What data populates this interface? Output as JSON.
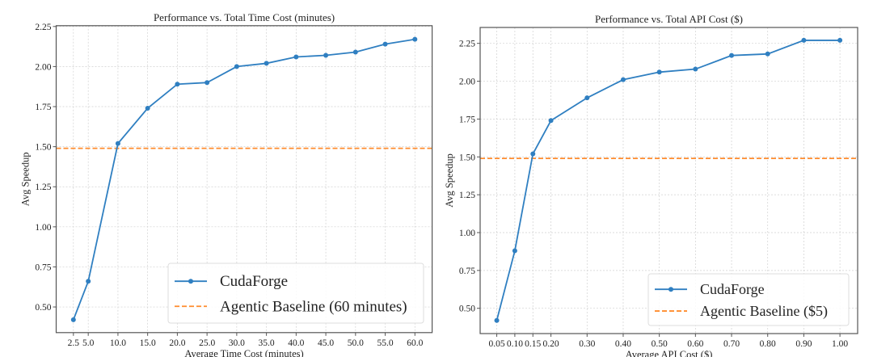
{
  "chart_data": [
    {
      "type": "line",
      "title": "Performance vs. Total Time Cost (minutes)",
      "xlabel": "Average Time Cost (minutes)",
      "ylabel": "Avg Speedup",
      "x": [
        2.5,
        5.0,
        10.0,
        15.0,
        20.0,
        25.0,
        30.0,
        35.0,
        40.0,
        45.0,
        50.0,
        55.0,
        60.0
      ],
      "x_tick_labels": [
        "2.5",
        "5.0",
        "10.0",
        "15.0",
        "20.0",
        "25.0",
        "30.0",
        "35.0",
        "40.0",
        "45.0",
        "50.0",
        "55.0",
        "60.0"
      ],
      "y_ticks": [
        0.5,
        0.75,
        1.0,
        1.25,
        1.5,
        1.75,
        2.0,
        2.25
      ],
      "y_tick_labels": [
        "0.50",
        "0.75",
        "1.00",
        "1.25",
        "1.50",
        "1.75",
        "2.00",
        "2.25"
      ],
      "xlim": [
        -0.4,
        62.9
      ],
      "ylim": [
        0.34,
        2.255
      ],
      "grid": true,
      "legend_position": "bottom-right",
      "series": [
        {
          "name": "CudaForge",
          "color": "#2f7fc1",
          "style": "solid-marker",
          "values": [
            0.42,
            0.66,
            1.52,
            1.74,
            1.89,
            1.9,
            2.0,
            2.02,
            2.06,
            2.07,
            2.09,
            2.14,
            2.17
          ]
        },
        {
          "name": "Agentic Baseline (60 minutes)",
          "color": "#ff8c2e",
          "style": "dashed-hline",
          "value": 1.49
        }
      ]
    },
    {
      "type": "line",
      "title": "Performance vs. Total API Cost ($)",
      "xlabel": "Average API Cost ($)",
      "ylabel": "Avg Speedup",
      "x": [
        0.05,
        0.1,
        0.15,
        0.2,
        0.3,
        0.4,
        0.5,
        0.6,
        0.7,
        0.8,
        0.9,
        1.0
      ],
      "x_tick_labels": [
        "0.05",
        "0.10",
        "0.15",
        "0.20",
        "0.30",
        "0.40",
        "0.50",
        "0.60",
        "0.70",
        "0.80",
        "0.90",
        "1.00"
      ],
      "y_ticks": [
        0.5,
        0.75,
        1.0,
        1.25,
        1.5,
        1.75,
        2.0,
        2.25
      ],
      "y_tick_labels": [
        "0.50",
        "0.75",
        "1.00",
        "1.25",
        "1.50",
        "1.75",
        "2.00",
        "2.25"
      ],
      "xlim": [
        0.004,
        1.049
      ],
      "ylim": [
        0.333,
        2.355
      ],
      "grid": true,
      "legend_position": "bottom-right",
      "series": [
        {
          "name": "CudaForge",
          "color": "#2f7fc1",
          "style": "solid-marker",
          "values": [
            0.42,
            0.88,
            1.52,
            1.74,
            1.89,
            2.01,
            2.06,
            2.08,
            2.17,
            2.18,
            2.27,
            2.27
          ]
        },
        {
          "name": "Agentic Baseline ($5)",
          "color": "#ff8c2e",
          "style": "dashed-hline",
          "value": 1.49
        }
      ]
    }
  ]
}
